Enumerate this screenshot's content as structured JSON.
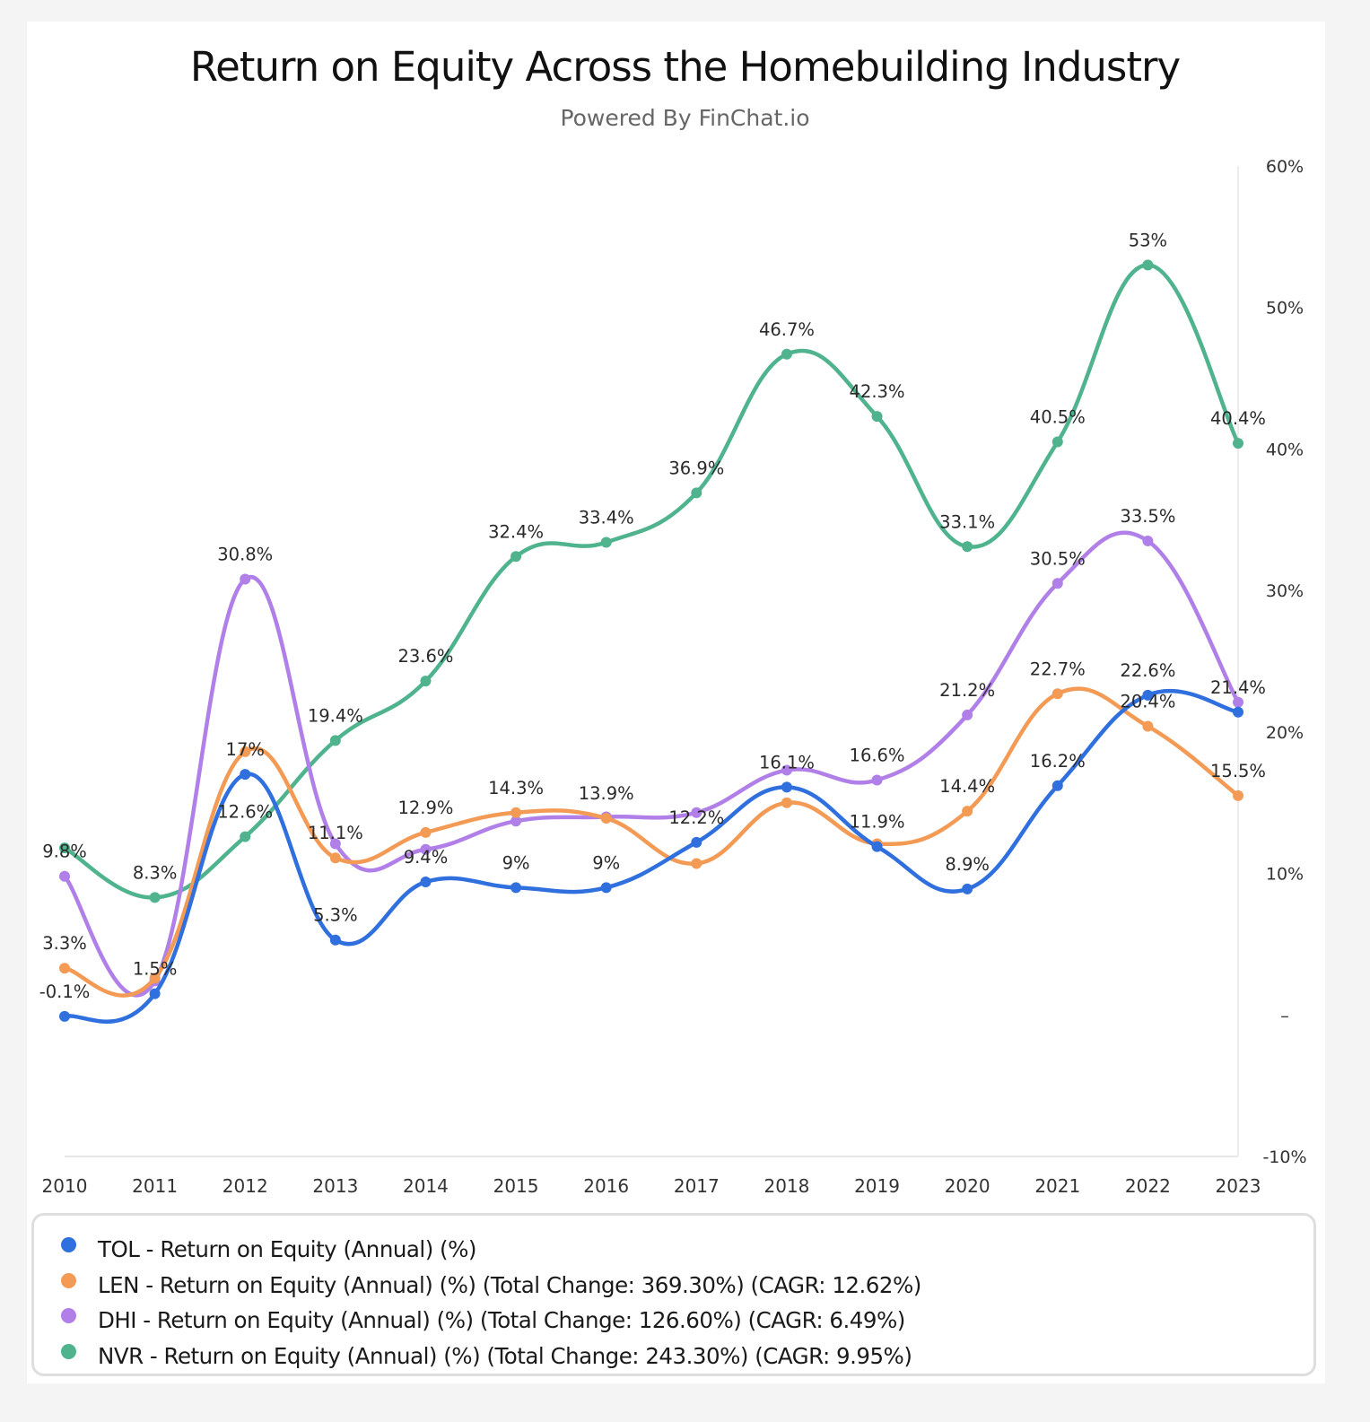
{
  "title": "Return on Equity Across the Homebuilding Industry",
  "subtitle": "Powered By FinChat.io",
  "chart_data": {
    "type": "line",
    "title": "Return on Equity Across the Homebuilding Industry",
    "subtitle": "Powered By FinChat.io",
    "x": [
      2010,
      2011,
      2012,
      2013,
      2014,
      2015,
      2016,
      2017,
      2018,
      2019,
      2020,
      2021,
      2022,
      2023
    ],
    "x_tick_labels": [
      "2010",
      "2011",
      "2012",
      "2013",
      "2014",
      "2015",
      "2016",
      "2017",
      "2018",
      "2019",
      "2020",
      "2021",
      "2022",
      "2023"
    ],
    "ylim": [
      -10,
      60
    ],
    "y_axis_side": "right",
    "y_ticks": [
      60,
      50,
      40,
      30,
      20,
      10,
      0,
      -10
    ],
    "y_tick_labels": [
      "60%",
      "50%",
      "40%",
      "30%",
      "20%",
      "10%",
      "–",
      "-10%"
    ],
    "grid": false,
    "legend_placement": "bottom",
    "smooth": true,
    "series": [
      {
        "key": "TOL",
        "name": "TOL - Return on Equity (Annual) (%)",
        "color": "#2f6fde",
        "values": [
          -0.1,
          1.5,
          17.0,
          5.3,
          9.4,
          9.0,
          9.0,
          12.2,
          16.1,
          11.9,
          8.9,
          16.2,
          22.6,
          21.4
        ]
      },
      {
        "key": "LEN",
        "name": "LEN - Return on Equity (Annual) (%) (Total Change: 369.30%) (CAGR: 12.62%)",
        "color": "#f39a55",
        "values": [
          3.3,
          2.6,
          18.6,
          11.1,
          12.9,
          14.3,
          13.9,
          10.7,
          15.0,
          12.1,
          14.4,
          22.7,
          20.4,
          15.5
        ]
      },
      {
        "key": "DHI",
        "name": "DHI - Return on Equity (Annual) (%) (Total Change: 126.60%) (CAGR: 6.49%)",
        "color": "#b07fe8",
        "values": [
          9.8,
          2.4,
          30.8,
          12.1,
          11.7,
          13.7,
          14.0,
          14.3,
          17.3,
          16.6,
          21.2,
          30.5,
          33.5,
          22.1
        ]
      },
      {
        "key": "NVR",
        "name": "NVR - Return on Equity (Annual) (%) (Total Change: 243.30%) (CAGR: 9.95%)",
        "color": "#4fb38e",
        "values": [
          11.8,
          8.3,
          12.6,
          19.4,
          23.6,
          32.4,
          33.4,
          36.9,
          46.7,
          42.3,
          33.1,
          40.5,
          53.0,
          40.4
        ]
      }
    ],
    "data_labels": [
      {
        "year": 2010,
        "series": "DHI",
        "text": "9.8%"
      },
      {
        "year": 2010,
        "series": "LEN",
        "text": "3.3%"
      },
      {
        "year": 2010,
        "series": "TOL",
        "text": "-0.1%"
      },
      {
        "year": 2011,
        "series": "NVR",
        "text": "8.3%"
      },
      {
        "year": 2011,
        "series": "TOL",
        "text": "1.5%"
      },
      {
        "year": 2012,
        "series": "DHI",
        "text": "30.8%"
      },
      {
        "year": 2012,
        "series": "TOL",
        "text": "17%"
      },
      {
        "year": 2012,
        "series": "NVR",
        "text": "12.6%"
      },
      {
        "year": 2013,
        "series": "NVR",
        "text": "19.4%"
      },
      {
        "year": 2013,
        "series": "LEN",
        "text": "11.1%"
      },
      {
        "year": 2013,
        "series": "TOL",
        "text": "5.3%"
      },
      {
        "year": 2014,
        "series": "NVR",
        "text": "23.6%"
      },
      {
        "year": 2014,
        "series": "LEN",
        "text": "12.9%"
      },
      {
        "year": 2014,
        "series": "TOL",
        "text": "9.4%"
      },
      {
        "year": 2015,
        "series": "NVR",
        "text": "32.4%"
      },
      {
        "year": 2015,
        "series": "LEN",
        "text": "14.3%"
      },
      {
        "year": 2015,
        "series": "TOL",
        "text": "9%"
      },
      {
        "year": 2016,
        "series": "NVR",
        "text": "33.4%"
      },
      {
        "year": 2016,
        "series": "LEN",
        "text": "13.9%"
      },
      {
        "year": 2016,
        "series": "TOL",
        "text": "9%"
      },
      {
        "year": 2017,
        "series": "NVR",
        "text": "36.9%"
      },
      {
        "year": 2017,
        "series": "TOL",
        "text": "12.2%"
      },
      {
        "year": 2018,
        "series": "NVR",
        "text": "46.7%"
      },
      {
        "year": 2018,
        "series": "TOL",
        "text": "16.1%"
      },
      {
        "year": 2019,
        "series": "NVR",
        "text": "42.3%"
      },
      {
        "year": 2019,
        "series": "DHI",
        "text": "16.6%"
      },
      {
        "year": 2019,
        "series": "TOL",
        "text": "11.9%"
      },
      {
        "year": 2020,
        "series": "NVR",
        "text": "33.1%"
      },
      {
        "year": 2020,
        "series": "DHI",
        "text": "21.2%"
      },
      {
        "year": 2020,
        "series": "LEN",
        "text": "14.4%"
      },
      {
        "year": 2020,
        "series": "TOL",
        "text": "8.9%"
      },
      {
        "year": 2021,
        "series": "NVR",
        "text": "40.5%"
      },
      {
        "year": 2021,
        "series": "DHI",
        "text": "30.5%"
      },
      {
        "year": 2021,
        "series": "LEN",
        "text": "22.7%"
      },
      {
        "year": 2021,
        "series": "TOL",
        "text": "16.2%"
      },
      {
        "year": 2022,
        "series": "NVR",
        "text": "53%"
      },
      {
        "year": 2022,
        "series": "DHI",
        "text": "33.5%"
      },
      {
        "year": 2022,
        "series": "TOL",
        "text": "22.6%"
      },
      {
        "year": 2022,
        "series": "LEN",
        "text": "20.4%"
      },
      {
        "year": 2023,
        "series": "NVR",
        "text": "40.4%"
      },
      {
        "year": 2023,
        "series": "TOL",
        "text": "21.4%"
      },
      {
        "year": 2023,
        "series": "LEN",
        "text": "15.5%"
      }
    ]
  }
}
